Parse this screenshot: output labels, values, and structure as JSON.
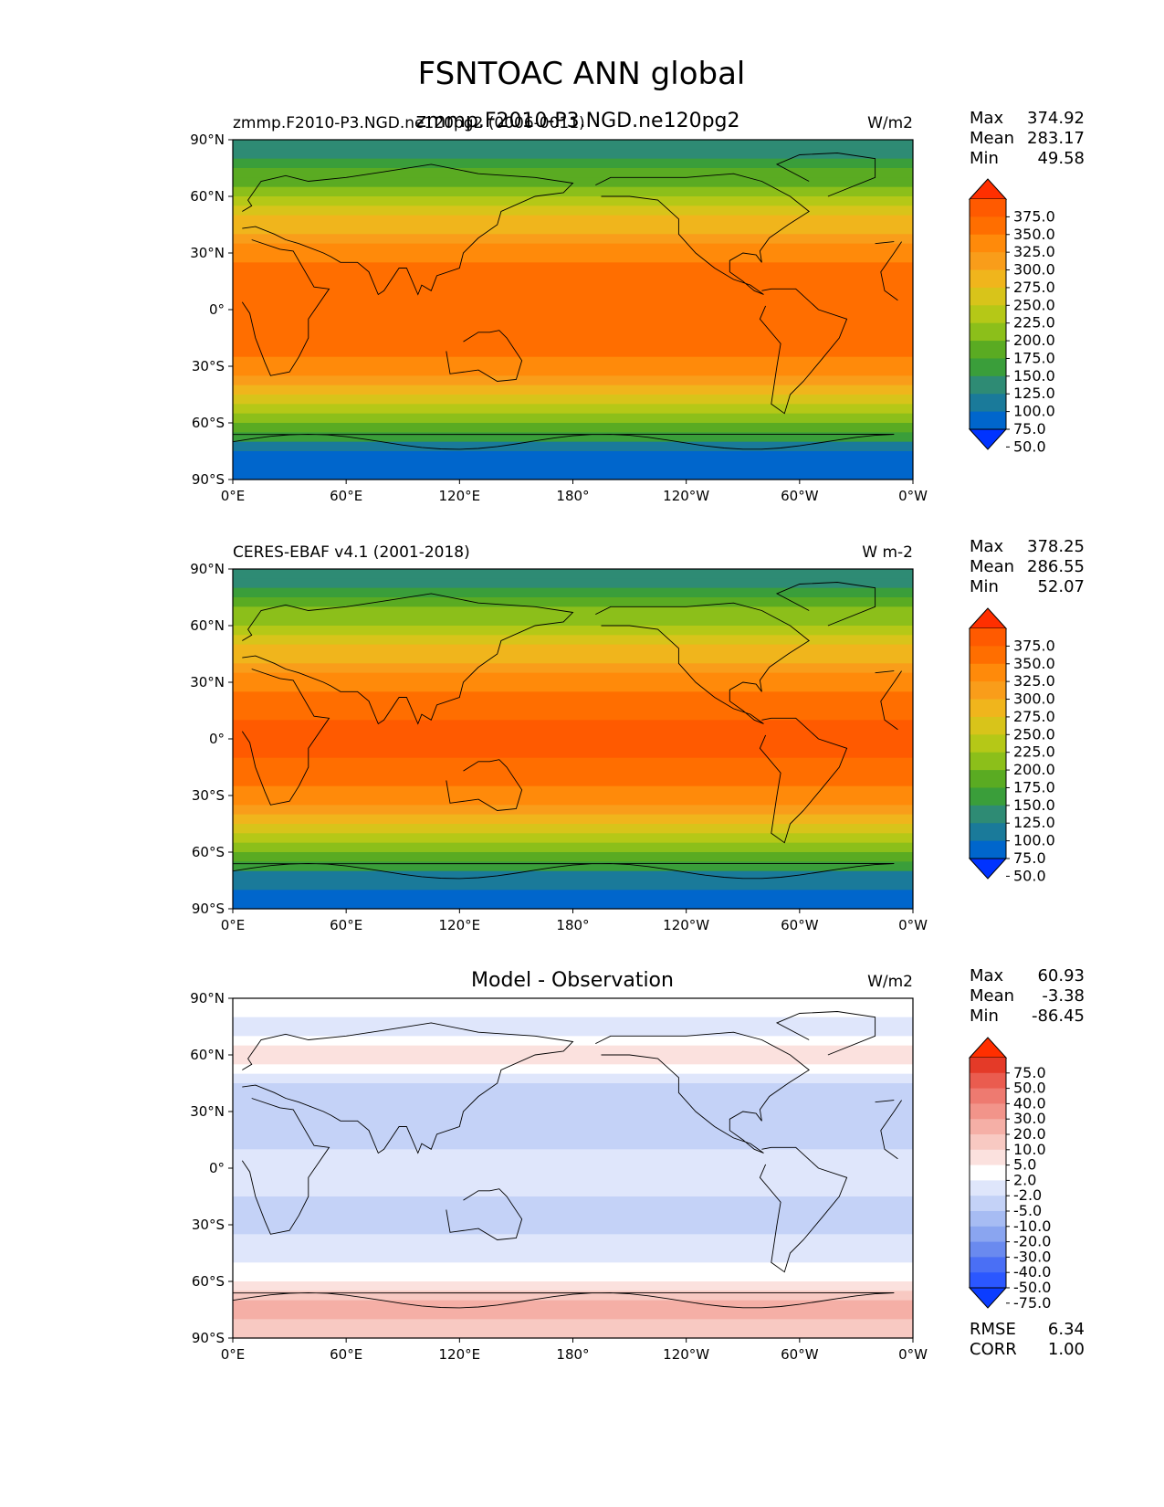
{
  "figure": {
    "suptitle": "FSNTOAC ANN global",
    "overlap_title": "zmmp.F2010-P3.NGD.ne120pg2"
  },
  "axes_ticks": {
    "lat_labels": [
      "90°N",
      "60°N",
      "30°N",
      "0°",
      "30°S",
      "60°S",
      "90°S"
    ],
    "lon_labels": [
      "0°E",
      "60°E",
      "120°E",
      "180°",
      "120°W",
      "60°W",
      "0°W"
    ]
  },
  "colors": {
    "abs_levels": [
      "#0033ff",
      "#0066cc",
      "#1a7a9a",
      "#2e8b74",
      "#3a9e3a",
      "#5aab22",
      "#8cbf1a",
      "#b5c817",
      "#d8c41a",
      "#f0b51c",
      "#f99d1a",
      "#ff8a0a",
      "#ff6e00",
      "#ff5a00",
      "#ff2f00"
    ],
    "diff_levels": [
      "#0b3dff",
      "#2b57ff",
      "#4a6ff5",
      "#6a8aef",
      "#8aa5f0",
      "#a7bcf3",
      "#c4d2f7",
      "#dfe6fb",
      "#ffffff",
      "#fbe1de",
      "#f8c9c2",
      "#f5afa6",
      "#f2948a",
      "#ee7a70",
      "#ea5c4f",
      "#e43a28",
      "#ff2f00"
    ]
  },
  "panels": [
    {
      "left_title": "zmmp.F2010-P3.NGD.ne120pg2 (0006-0011)",
      "center_title": "",
      "units": "W/m2",
      "stats": [
        [
          "Max",
          "374.92"
        ],
        [
          "Mean",
          "283.17"
        ],
        [
          "Min",
          "49.58"
        ]
      ],
      "colorbar": [
        "375.0",
        "350.0",
        "325.0",
        "300.0",
        "275.0",
        "250.0",
        "225.0",
        "200.0",
        "175.0",
        "150.0",
        "125.0",
        "100.0",
        "75.0",
        "50.0"
      ]
    },
    {
      "left_title": "CERES-EBAF v4.1 (2001-2018)",
      "center_title": "",
      "units": "W m-2",
      "stats": [
        [
          "Max",
          "378.25"
        ],
        [
          "Mean",
          "286.55"
        ],
        [
          "Min",
          "52.07"
        ]
      ],
      "colorbar": [
        "375.0",
        "350.0",
        "325.0",
        "300.0",
        "275.0",
        "250.0",
        "225.0",
        "200.0",
        "175.0",
        "150.0",
        "125.0",
        "100.0",
        "75.0",
        "50.0"
      ]
    },
    {
      "left_title": "",
      "center_title": "Model - Observation",
      "units": "W/m2",
      "stats": [
        [
          "Max",
          "60.93"
        ],
        [
          "Mean",
          "-3.38"
        ],
        [
          "Min",
          "-86.45"
        ]
      ],
      "colorbar": [
        "75.0",
        "50.0",
        "40.0",
        "30.0",
        "20.0",
        "10.0",
        "5.0",
        "2.0",
        "-2.0",
        "-5.0",
        "-10.0",
        "-20.0",
        "-30.0",
        "-40.0",
        "-50.0",
        "-75.0"
      ],
      "extra_stats": [
        [
          "RMSE",
          "6.34"
        ],
        [
          "CORR",
          "1.00"
        ]
      ]
    }
  ],
  "chart_data": [
    {
      "type": "heatmap",
      "title": "zmmp.F2010-P3.NGD.ne120pg2 (0006-0011)",
      "units": "W/m2",
      "x_ticks": [
        "0°E",
        "60°E",
        "120°E",
        "180°",
        "120°W",
        "60°W",
        "0°W"
      ],
      "y_ticks": [
        "90°N",
        "60°N",
        "30°N",
        "0°",
        "30°S",
        "60°S",
        "90°S"
      ],
      "xlim": [
        0,
        360
      ],
      "ylim": [
        -90,
        90
      ],
      "zonal_profile": {
        "lat": [
          90,
          75,
          60,
          45,
          30,
          15,
          0,
          -15,
          -30,
          -45,
          -60,
          -75,
          -90
        ],
        "value": [
          100,
          145,
          200,
          260,
          315,
          345,
          350,
          345,
          310,
          255,
          175,
          75,
          65
        ]
      },
      "stats": {
        "max": 374.92,
        "mean": 283.17,
        "min": 49.58
      },
      "levels": [
        50,
        75,
        100,
        125,
        150,
        175,
        200,
        225,
        250,
        275,
        300,
        325,
        350,
        375
      ]
    },
    {
      "type": "heatmap",
      "title": "CERES-EBAF v4.1 (2001-2018)",
      "units": "W m-2",
      "x_ticks": [
        "0°E",
        "60°E",
        "120°E",
        "180°",
        "120°W",
        "60°W",
        "0°W"
      ],
      "y_ticks": [
        "90°N",
        "60°N",
        "30°N",
        "0°",
        "30°S",
        "60°S",
        "90°S"
      ],
      "xlim": [
        0,
        360
      ],
      "ylim": [
        -90,
        90
      ],
      "zonal_profile": {
        "lat": [
          90,
          75,
          60,
          45,
          30,
          15,
          0,
          -15,
          -30,
          -45,
          -60,
          -75,
          -90
        ],
        "value": [
          100,
          148,
          205,
          262,
          318,
          348,
          355,
          348,
          312,
          258,
          178,
          78,
          68
        ]
      },
      "stats": {
        "max": 378.25,
        "mean": 286.55,
        "min": 52.07
      },
      "levels": [
        50,
        75,
        100,
        125,
        150,
        175,
        200,
        225,
        250,
        275,
        300,
        325,
        350,
        375
      ]
    },
    {
      "type": "heatmap",
      "title": "Model - Observation",
      "units": "W/m2",
      "x_ticks": [
        "0°E",
        "60°E",
        "120°E",
        "180°",
        "120°W",
        "60°W",
        "0°W"
      ],
      "y_ticks": [
        "90°N",
        "60°N",
        "30°N",
        "0°",
        "30°S",
        "60°S",
        "90°S"
      ],
      "xlim": [
        0,
        360
      ],
      "ylim": [
        -90,
        90
      ],
      "zonal_profile": {
        "lat": [
          90,
          75,
          60,
          45,
          30,
          15,
          0,
          -15,
          -30,
          -45,
          -60,
          -75,
          -90
        ],
        "value": [
          3,
          -6,
          4,
          -5,
          -8,
          -6,
          -2,
          -5,
          -6,
          -4,
          2,
          12,
          6
        ]
      },
      "stats": {
        "max": 60.93,
        "mean": -3.38,
        "min": -86.45,
        "rmse": 6.34,
        "corr": 1.0
      },
      "levels": [
        -75,
        -50,
        -40,
        -30,
        -20,
        -10,
        -5,
        -2,
        2,
        5,
        10,
        20,
        30,
        40,
        50,
        75
      ]
    }
  ]
}
